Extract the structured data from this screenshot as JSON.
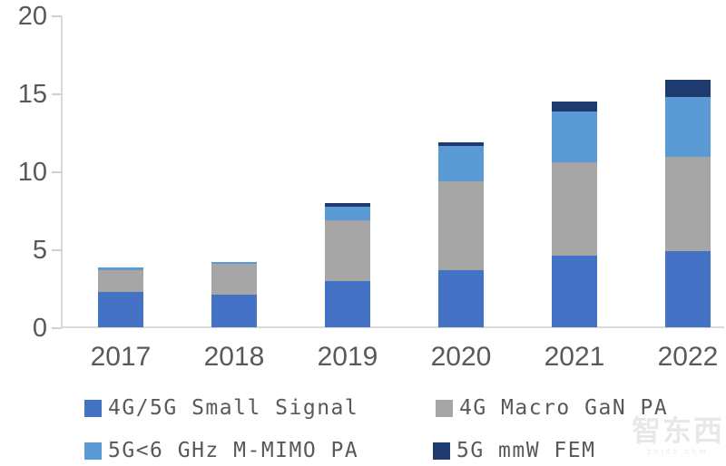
{
  "chart_data": {
    "type": "bar",
    "stacked": true,
    "title": "",
    "categories": [
      "2017",
      "2018",
      "2019",
      "2020",
      "2021",
      "2022"
    ],
    "series": [
      {
        "name": "4G/5G Small Signal",
        "color": "#4472c4",
        "values": [
          2.3,
          2.1,
          3.0,
          3.7,
          4.6,
          4.9
        ]
      },
      {
        "name": "4G Macro GaN PA",
        "color": "#a6a6a6",
        "values": [
          1.4,
          2.0,
          3.9,
          5.7,
          6.0,
          6.1
        ]
      },
      {
        "name": "5G<6 GHz M-MIMO PA",
        "color": "#5b9bd5",
        "values": [
          0.2,
          0.1,
          0.9,
          2.3,
          3.3,
          3.8
        ]
      },
      {
        "name": "5G mmW FEM",
        "color": "#1f3a6e",
        "values": [
          0.0,
          0.0,
          0.2,
          0.2,
          0.6,
          1.1
        ]
      }
    ],
    "totals": [
      3.9,
      4.2,
      8.0,
      11.9,
      14.5,
      15.9
    ],
    "ylim": [
      0,
      20
    ],
    "yticks": [
      0,
      5,
      10,
      15,
      20
    ],
    "xlabel": "",
    "ylabel": "",
    "grid": false,
    "legend_position": "bottom-two-columns"
  },
  "legend": {
    "items": [
      {
        "label": "4G/5G Small Signal",
        "color": "#4472c4"
      },
      {
        "label": "4G Macro GaN PA",
        "color": "#a6a6a6"
      },
      {
        "label": "5G<6 GHz M-MIMO PA",
        "color": "#5b9bd5"
      },
      {
        "label": "5G mmW FEM",
        "color": "#1f3a6e"
      }
    ]
  },
  "watermark": {
    "text": "智东西",
    "subtext": "zhidx.com"
  },
  "colors": {
    "axis_line": "#d9d9d9",
    "tick_label": "#595959",
    "background": "#ffffff"
  }
}
